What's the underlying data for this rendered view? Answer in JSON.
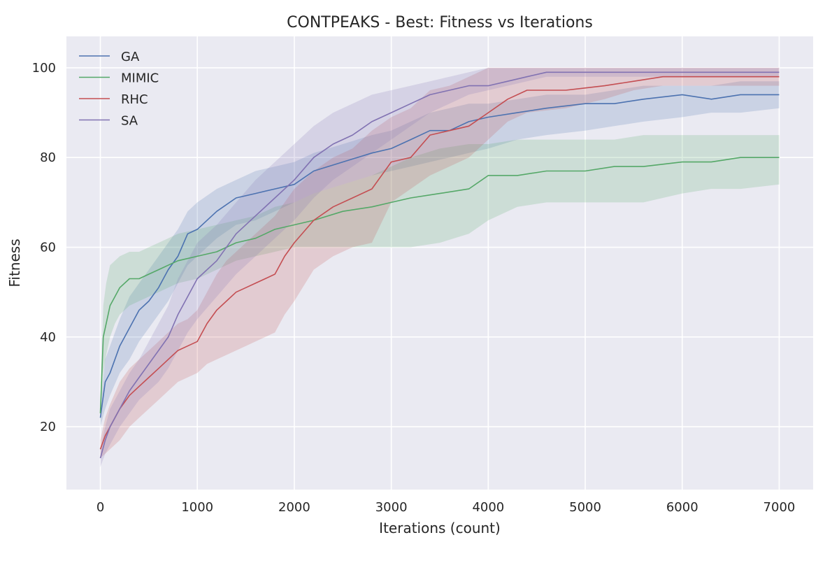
{
  "chart_data": {
    "type": "line",
    "title": "CONTPEAKS - Best: Fitness vs Iterations",
    "xlabel": "Iterations (count)",
    "ylabel": "Fitness",
    "xlim": [
      -350,
      7350
    ],
    "ylim": [
      6,
      107
    ],
    "xticks": [
      0,
      1000,
      2000,
      3000,
      4000,
      5000,
      6000,
      7000
    ],
    "yticks": [
      20,
      40,
      60,
      80,
      100
    ],
    "grid": true,
    "legend_position": "top-left",
    "series": [
      {
        "name": "GA",
        "color": "#4c72b0",
        "x": [
          0,
          50,
          100,
          200,
          300,
          400,
          500,
          600,
          700,
          800,
          900,
          1000,
          1200,
          1400,
          1600,
          1800,
          2000,
          2200,
          2500,
          2800,
          3000,
          3200,
          3400,
          3600,
          3800,
          4000,
          4300,
          4600,
          5000,
          5300,
          5600,
          6000,
          6300,
          6600,
          7000
        ],
        "y": [
          22,
          30,
          32,
          38,
          42,
          46,
          48,
          51,
          55,
          58,
          63,
          64,
          68,
          71,
          72,
          73,
          74,
          77,
          79,
          81,
          82,
          84,
          86,
          86,
          88,
          89,
          90,
          91,
          92,
          92,
          93,
          94,
          93,
          94,
          94
        ],
        "band_low": [
          20,
          24,
          27,
          32,
          35,
          39,
          42,
          45,
          48,
          52,
          56,
          58,
          62,
          65,
          66,
          68,
          70,
          72,
          74,
          76,
          77,
          78,
          79,
          80,
          81,
          82,
          84,
          85,
          86,
          87,
          88,
          89,
          90,
          90,
          91
        ],
        "band_high": [
          24,
          35,
          38,
          44,
          49,
          52,
          55,
          58,
          61,
          64,
          68,
          70,
          73,
          75,
          77,
          78,
          79,
          81,
          83,
          85,
          86,
          88,
          90,
          91,
          92,
          92,
          93,
          94,
          94,
          95,
          96,
          96,
          96,
          97,
          97
        ]
      },
      {
        "name": "MIMIC",
        "color": "#55a868",
        "x": [
          0,
          30,
          60,
          100,
          150,
          200,
          300,
          400,
          500,
          600,
          700,
          800,
          1000,
          1200,
          1400,
          1600,
          1800,
          2000,
          2200,
          2500,
          2800,
          3000,
          3200,
          3500,
          3800,
          4000,
          4300,
          4600,
          5000,
          5300,
          5600,
          6000,
          6300,
          6600,
          7000
        ],
        "y": [
          23,
          40,
          43,
          47,
          49,
          51,
          53,
          53,
          54,
          55,
          56,
          57,
          58,
          59,
          61,
          62,
          64,
          65,
          66,
          68,
          69,
          70,
          71,
          72,
          73,
          76,
          76,
          77,
          77,
          78,
          78,
          79,
          79,
          80,
          80
        ],
        "band_low": [
          21,
          32,
          36,
          40,
          43,
          45,
          47,
          48,
          49,
          50,
          51,
          52,
          53,
          55,
          57,
          58,
          59,
          60,
          60,
          60,
          60,
          60,
          60,
          61,
          63,
          66,
          69,
          70,
          70,
          70,
          70,
          72,
          73,
          73,
          74
        ],
        "band_high": [
          25,
          47,
          52,
          56,
          57,
          58,
          59,
          59,
          60,
          61,
          62,
          63,
          64,
          65,
          66,
          67,
          69,
          70,
          72,
          74,
          76,
          78,
          80,
          82,
          83,
          83,
          84,
          84,
          84,
          84,
          85,
          85,
          85,
          85,
          85
        ]
      },
      {
        "name": "RHC",
        "color": "#c44e52",
        "x": [
          0,
          50,
          100,
          200,
          300,
          400,
          500,
          600,
          700,
          800,
          900,
          1000,
          1100,
          1200,
          1300,
          1400,
          1500,
          1600,
          1700,
          1800,
          1900,
          2000,
          2200,
          2400,
          2600,
          2800,
          3000,
          3200,
          3400,
          3600,
          3800,
          4000,
          4200,
          4400,
          4800,
          5200,
          5500,
          5800,
          6200,
          6600,
          7000
        ],
        "y": [
          15,
          18,
          20,
          24,
          27,
          29,
          31,
          33,
          35,
          37,
          38,
          39,
          43,
          46,
          48,
          50,
          51,
          52,
          53,
          54,
          58,
          61,
          66,
          69,
          71,
          73,
          79,
          80,
          85,
          86,
          87,
          90,
          93,
          95,
          95,
          96,
          97,
          98,
          98,
          98,
          98
        ],
        "band_low": [
          13,
          14,
          15,
          17,
          20,
          22,
          24,
          26,
          28,
          30,
          31,
          32,
          34,
          35,
          36,
          37,
          38,
          39,
          40,
          41,
          45,
          48,
          55,
          58,
          60,
          61,
          70,
          73,
          76,
          78,
          80,
          84,
          88,
          90,
          91,
          93,
          95,
          96,
          96,
          96,
          96
        ],
        "band_high": [
          17,
          22,
          25,
          30,
          33,
          35,
          37,
          39,
          41,
          43,
          44,
          46,
          50,
          54,
          57,
          59,
          61,
          63,
          65,
          67,
          70,
          73,
          77,
          80,
          82,
          86,
          89,
          91,
          95,
          96,
          98,
          100,
          100,
          100,
          100,
          100,
          100,
          100,
          100,
          100,
          100
        ]
      },
      {
        "name": "SA",
        "color": "#8172b2",
        "x": [
          0,
          50,
          100,
          200,
          300,
          400,
          500,
          600,
          700,
          800,
          900,
          1000,
          1200,
          1400,
          1600,
          1800,
          2000,
          2200,
          2400,
          2600,
          2800,
          3000,
          3200,
          3400,
          3600,
          3800,
          4000,
          4200,
          4400,
          4600,
          5000,
          5500,
          6000,
          6500,
          7000
        ],
        "y": [
          13,
          17,
          20,
          24,
          28,
          31,
          34,
          37,
          40,
          45,
          49,
          53,
          57,
          63,
          67,
          71,
          75,
          80,
          83,
          85,
          88,
          90,
          92,
          94,
          95,
          96,
          96,
          97,
          98,
          99,
          99,
          99,
          99,
          99,
          99
        ],
        "band_low": [
          11,
          14,
          16,
          20,
          23,
          26,
          28,
          30,
          33,
          37,
          41,
          44,
          49,
          54,
          58,
          62,
          66,
          71,
          75,
          78,
          81,
          84,
          87,
          90,
          92,
          94,
          95,
          96,
          97,
          98,
          98,
          98,
          98,
          98,
          98
        ],
        "band_high": [
          15,
          20,
          24,
          28,
          32,
          35,
          39,
          43,
          47,
          53,
          57,
          61,
          65,
          70,
          75,
          79,
          83,
          87,
          90,
          92,
          94,
          95,
          96,
          97,
          98,
          99,
          100,
          100,
          100,
          100,
          100,
          100,
          100,
          100,
          100
        ]
      }
    ]
  }
}
